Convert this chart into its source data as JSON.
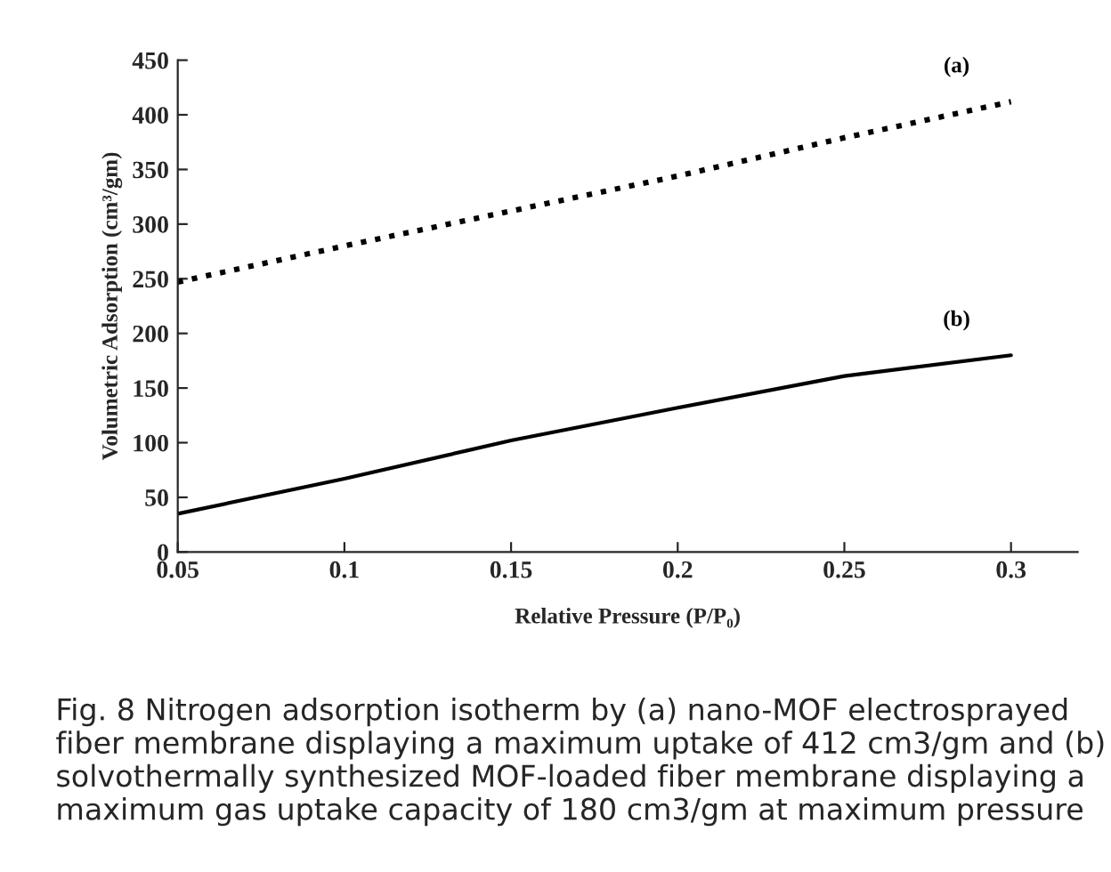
{
  "chart_data": {
    "type": "line",
    "xlabel": "Relative Pressure (P/P₀)",
    "ylabel": "Volumetric Adsorption (cm³/gm)",
    "x": [
      0.05,
      0.1,
      0.15,
      0.2,
      0.25,
      0.3
    ],
    "series": [
      {
        "name": "(a)",
        "color": "#000000",
        "line_style": "dotted",
        "values": [
          247,
          280,
          312,
          344,
          379,
          412
        ]
      },
      {
        "name": "(b)",
        "color": "#000000",
        "line_style": "solid",
        "values": [
          35,
          67,
          102,
          132,
          161,
          180
        ]
      }
    ],
    "xlim": [
      0.05,
      0.32
    ],
    "xticks": [
      0.05,
      0.1,
      0.15,
      0.2,
      0.25,
      0.3
    ],
    "ylim": [
      0,
      450
    ],
    "yticks": [
      0,
      50,
      100,
      150,
      200,
      250,
      300,
      350,
      400,
      450
    ],
    "grid": false,
    "marker": "none",
    "annotations": [
      "Fig. 8 Nitrogen adsorption isotherm by (a) nano-MOF electrosprayed fiber membrane displaying a maximum uptake of 412 cm3/gm and (b) solvothermally synthesized MOF-loaded fiber membrane displaying a maximum gas uptake capacity of 180 cm3/gm at maximum pressure"
    ]
  }
}
